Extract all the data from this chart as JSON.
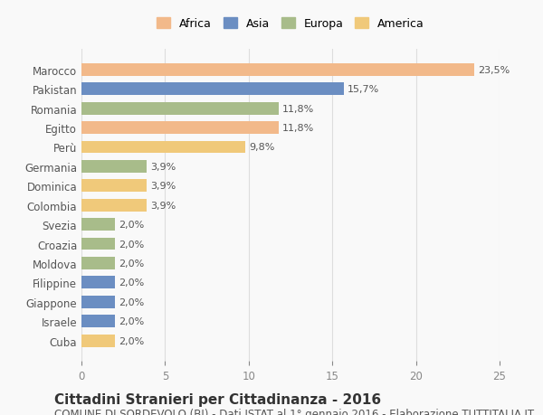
{
  "categories": [
    "Cuba",
    "Israele",
    "Giappone",
    "Filippine",
    "Moldova",
    "Croazia",
    "Svezia",
    "Colombia",
    "Dominica",
    "Germania",
    "Perù",
    "Egitto",
    "Romania",
    "Pakistan",
    "Marocco"
  ],
  "values": [
    2.0,
    2.0,
    2.0,
    2.0,
    2.0,
    2.0,
    2.0,
    3.9,
    3.9,
    3.9,
    9.8,
    11.8,
    11.8,
    15.7,
    23.5
  ],
  "labels": [
    "2,0%",
    "2,0%",
    "2,0%",
    "2,0%",
    "2,0%",
    "2,0%",
    "2,0%",
    "3,9%",
    "3,9%",
    "3,9%",
    "9,8%",
    "11,8%",
    "11,8%",
    "15,7%",
    "23,5%"
  ],
  "colors": [
    "#f0c97a",
    "#6b8ec2",
    "#6b8ec2",
    "#6b8ec2",
    "#a8bc8a",
    "#a8bc8a",
    "#a8bc8a",
    "#f0c97a",
    "#f0c97a",
    "#a8bc8a",
    "#f0c97a",
    "#f2b98a",
    "#a8bc8a",
    "#6b8ec2",
    "#f2b98a"
  ],
  "continent_colors": {
    "Africa": "#f2b98a",
    "Asia": "#6b8ec2",
    "Europa": "#a8bc8a",
    "America": "#f0c97a"
  },
  "xlim": [
    0,
    25
  ],
  "xticks": [
    0,
    5,
    10,
    15,
    20,
    25
  ],
  "title": "Cittadini Stranieri per Cittadinanza - 2016",
  "subtitle": "COMUNE DI SORDEVOLO (BI) - Dati ISTAT al 1° gennaio 2016 - Elaborazione TUTTITALIA.IT",
  "bg_color": "#f9f9f9",
  "bar_height": 0.65,
  "title_fontsize": 11,
  "subtitle_fontsize": 8.5,
  "label_fontsize": 8,
  "tick_fontsize": 8.5,
  "legend_fontsize": 9
}
